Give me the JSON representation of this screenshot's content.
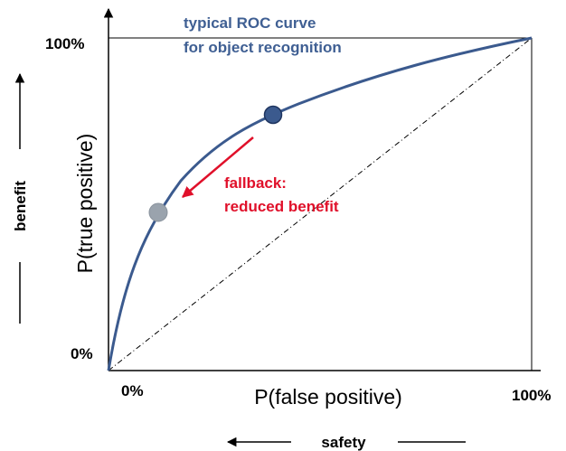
{
  "title": [
    "typical ROC curve",
    "for object recognition"
  ],
  "annotation": [
    "fallback:",
    "reduced benefit"
  ],
  "y_axis": {
    "label": "P(true positive)",
    "top": "100%",
    "bottom": "0%",
    "meaning": "benefit"
  },
  "x_axis": {
    "label": "P(false positive)",
    "left": "0%",
    "right": "100%",
    "meaning": "safety"
  }
}
